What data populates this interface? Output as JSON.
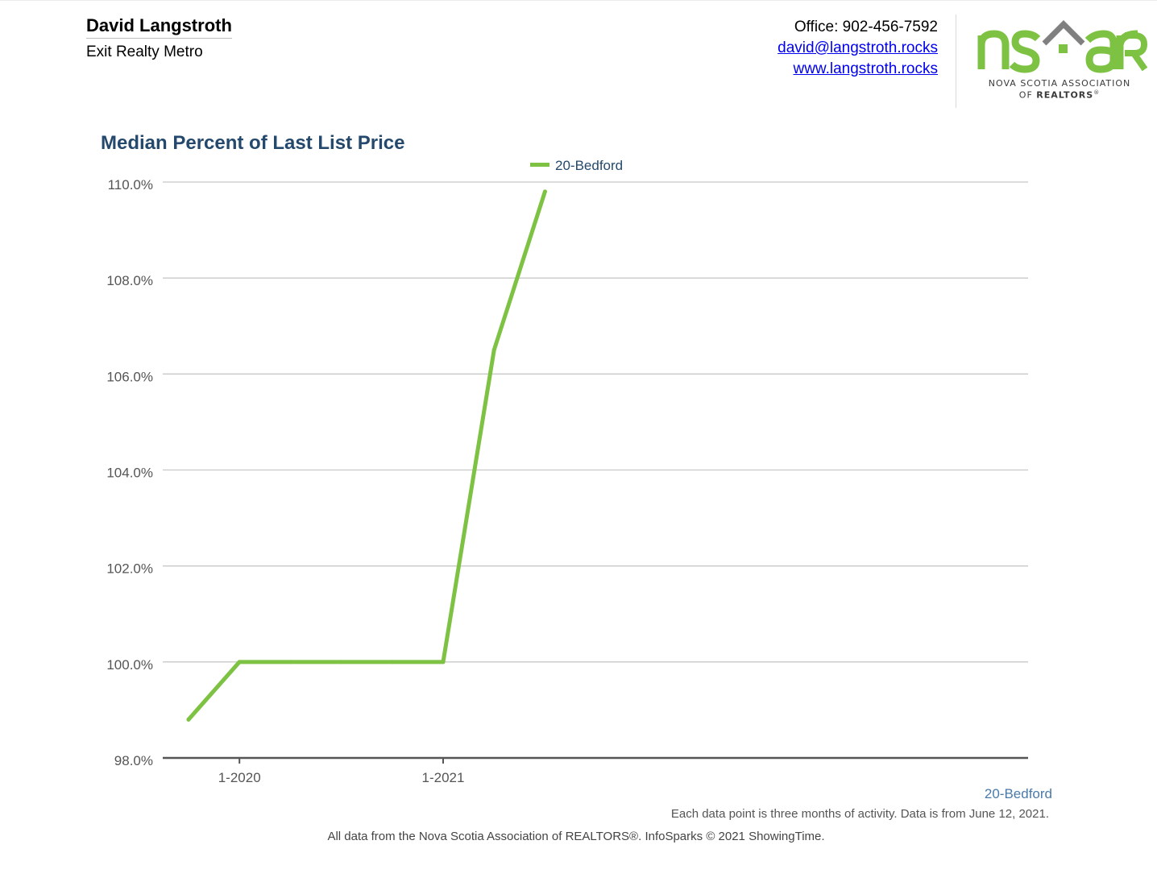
{
  "header": {
    "agent_name": "David Langstroth",
    "agent_company": "Exit Realty Metro",
    "office": "Office: 902-456-7592",
    "email": "david@langstroth.rocks",
    "website": "www.langstroth.rocks"
  },
  "logo": {
    "brand_text": "nsar",
    "line1": "NOVA SCOTIA ASSOCIATION",
    "line2_prefix": "OF ",
    "line2_bold": "REALTORS",
    "line2_mark": "®",
    "colors": {
      "green": "#7dc243",
      "gray": "#808080"
    }
  },
  "chart_data": {
    "type": "line",
    "title": "Median Percent of Last List Price",
    "xlabel": "",
    "ylabel": "",
    "x": [
      "10-2019",
      "1-2020",
      "4-2020",
      "7-2020",
      "10-2020",
      "1-2021",
      "4-2021",
      "5-2021"
    ],
    "x_tick_labels": [
      "1-2020",
      "1-2021"
    ],
    "series": [
      {
        "name": "20-Bedford",
        "color": "#7dc243",
        "values": [
          98.8,
          100.0,
          100.0,
          100.0,
          100.0,
          100.0,
          106.5,
          109.8
        ]
      }
    ],
    "y_tick_labels": [
      "98.0%",
      "100.0%",
      "102.0%",
      "104.0%",
      "106.0%",
      "108.0%",
      "110.0%"
    ],
    "ylim": [
      98.0,
      110.0
    ],
    "grid": true,
    "legend": "top-center"
  },
  "notes": {
    "series_label": "20-Bedford",
    "data_note": "Each data point is three months of activity. Data is from June 12, 2021.",
    "footer": "All data from the Nova Scotia Association of REALTORS®. InfoSparks © 2021 ShowingTime."
  }
}
